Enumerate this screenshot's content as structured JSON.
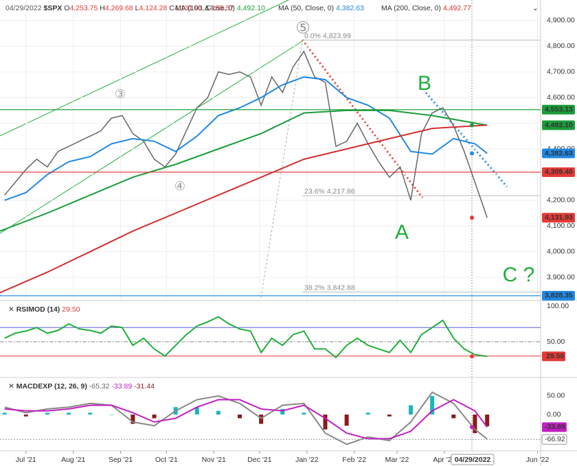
{
  "header": {
    "date": "04/29/2022",
    "symbol": "$SPX",
    "ohlc": [
      {
        "key": "O",
        "value": "4,253.75"
      },
      {
        "key": "H",
        "value": "4,269.68"
      },
      {
        "key": "L",
        "value": "4,124.28"
      },
      {
        "key": "C",
        "value": "4,131.93"
      },
      {
        "key": "Δ",
        "value": "-155.57"
      }
    ],
    "mas": [
      {
        "name": "MA (100, Close, 0)",
        "value": "4,492.10",
        "color": "#1a9c3a"
      },
      {
        "name": "MA (50, Close, 0)",
        "value": "4,382.63",
        "color": "#1e88e5"
      },
      {
        "name": "MA (200, Close, 0)",
        "value": "4,492.77",
        "color": "#d32f2f"
      }
    ]
  },
  "annotations": {
    "wave3": "③",
    "wave4": "④",
    "wave5": "⑤",
    "a": "A",
    "b": "B",
    "c": "C ?"
  },
  "chart_data": [
    {
      "type": "line",
      "xlim": [
        -17,
        337
      ],
      "ylim": [
        3812,
        4980
      ],
      "grid": true,
      "yticks": [
        {
          "value": 3900,
          "label": "3,900.00"
        },
        {
          "value": 4000,
          "label": "4,000.00"
        },
        {
          "value": 4100,
          "label": "4,100.00"
        },
        {
          "value": 4200,
          "label": "4,200.00"
        },
        {
          "value": 4300,
          "label": "4,300.00"
        },
        {
          "value": 4400,
          "label": "4,400.00"
        },
        {
          "value": 4500,
          "label": "4,500.00"
        },
        {
          "value": 4600,
          "label": "4,600.00"
        },
        {
          "value": 4700,
          "label": "4,700.00"
        },
        {
          "value": 4800,
          "label": "4,800.00"
        },
        {
          "value": 4900,
          "label": "4,900.00"
        }
      ],
      "series": [
        {
          "color": "#666666",
          "x": [
            -14,
            -7,
            0,
            7,
            14,
            21,
            28,
            35,
            42,
            49,
            56,
            63,
            70,
            77,
            84,
            91,
            98,
            105,
            112,
            119,
            126,
            133,
            140,
            147,
            154,
            161,
            168,
            175,
            182,
            189,
            196,
            203,
            210,
            217,
            224,
            231,
            238,
            245,
            252,
            259,
            266,
            273,
            280,
            287,
            294,
            302
          ],
          "values": [
            4220,
            4270,
            4320,
            4360,
            4330,
            4390,
            4410,
            4430,
            4450,
            4470,
            4520,
            4530,
            4460,
            4430,
            4360,
            4330,
            4380,
            4470,
            4560,
            4600,
            4700,
            4690,
            4700,
            4680,
            4570,
            4680,
            4620,
            4720,
            4780,
            4680,
            4660,
            4410,
            4430,
            4500,
            4420,
            4350,
            4290,
            4330,
            4200,
            4460,
            4540,
            4560,
            4490,
            4390,
            4270,
            4131.93
          ]
        },
        {
          "color": "#1e88e5",
          "x": [
            -14,
            0,
            14,
            28,
            42,
            56,
            70,
            84,
            98,
            112,
            126,
            140,
            154,
            168,
            182,
            196,
            210,
            224,
            238,
            252,
            266,
            280,
            294,
            302
          ],
          "values": [
            4200,
            4230,
            4300,
            4350,
            4370,
            4420,
            4440,
            4430,
            4390,
            4450,
            4530,
            4560,
            4600,
            4650,
            4680,
            4670,
            4600,
            4570,
            4520,
            4390,
            4380,
            4440,
            4420,
            4382.63
          ]
        },
        {
          "color": "#1a9c3a",
          "x": [
            -17,
            14,
            42,
            70,
            98,
            126,
            154,
            182,
            210,
            238,
            266,
            302
          ],
          "values": [
            4080,
            4150,
            4220,
            4290,
            4340,
            4400,
            4460,
            4540,
            4550,
            4550,
            4530,
            4492.1
          ]
        },
        {
          "color": "#d32f2f",
          "x": [
            -17,
            14,
            42,
            70,
            98,
            126,
            154,
            182,
            210,
            238,
            266,
            302
          ],
          "values": [
            3840,
            3920,
            4000,
            4080,
            4150,
            4220,
            4290,
            4360,
            4400,
            4440,
            4480,
            4492.77
          ]
        }
      ],
      "levels": [
        {
          "value": 4553.13,
          "label": "4,553.13",
          "color": "#1a9c3a",
          "line": true
        },
        {
          "value": 4492.1,
          "label": "4,492.10",
          "color": "#1a9c3a",
          "line": false
        },
        {
          "value": 4382.63,
          "label": "4,382.63",
          "color": "#1e88e5",
          "line": false
        },
        {
          "value": 4309.4,
          "label": "4,309.40",
          "color": "#e53935",
          "line": true
        },
        {
          "value": 4131.93,
          "label": "4,131.93",
          "color": "#e53935",
          "line": false
        },
        {
          "value": 3828.35,
          "label": "3,828.35",
          "color": "#1e88e5",
          "line": true
        }
      ],
      "fib": [
        {
          "level": "0.0%",
          "value": 4823.99,
          "label": "4,823.99"
        },
        {
          "level": "23.6%",
          "value": 4217.86,
          "label": "4,217.86"
        },
        {
          "level": "38.2%",
          "value": 3842.88,
          "label": "3,842.88"
        }
      ]
    },
    {
      "type": "line",
      "title": "RSIMOD (14)",
      "xlim": [
        -17,
        337
      ],
      "ylim": [
        1.9,
        105.8
      ],
      "yticks": [
        {
          "value": 50,
          "label": "50.00"
        },
        {
          "value": 100,
          "label": "100.00"
        }
      ],
      "bands": [
        {
          "value": 70,
          "color": "#5c5ce0"
        },
        {
          "value": 30,
          "color": "#e53935"
        },
        {
          "value": 50,
          "color": "#888888"
        }
      ],
      "last": {
        "value": 29.5,
        "label": "29.50"
      },
      "series": [
        {
          "color": "#1fae3a",
          "x": [
            -14,
            -7,
            0,
            7,
            14,
            21,
            28,
            35,
            42,
            49,
            56,
            63,
            70,
            77,
            84,
            91,
            98,
            105,
            112,
            119,
            126,
            133,
            140,
            147,
            154,
            161,
            168,
            175,
            182,
            189,
            196,
            203,
            210,
            217,
            224,
            231,
            238,
            245,
            252,
            259,
            266,
            273,
            280,
            287,
            294,
            302
          ],
          "values": [
            55,
            62,
            65,
            70,
            62,
            66,
            75,
            68,
            66,
            62,
            72,
            70,
            45,
            55,
            40,
            30,
            45,
            60,
            72,
            78,
            85,
            75,
            68,
            65,
            35,
            55,
            45,
            60,
            65,
            40,
            40,
            28,
            45,
            55,
            45,
            40,
            35,
            52,
            35,
            60,
            70,
            80,
            55,
            40,
            32,
            29.5
          ]
        }
      ]
    },
    {
      "type": "line",
      "title": "MACDEXP (12, 26, 9)",
      "xlim": [
        -17,
        337
      ],
      "ylim": [
        -94,
        96
      ],
      "yticks": [
        {
          "value": 50,
          "label": "50.00"
        },
        {
          "value": 0,
          "label": "0.00"
        }
      ],
      "xticks": [
        {
          "value": 0,
          "label": "Jul '21"
        },
        {
          "value": 31,
          "label": "Aug '21"
        },
        {
          "value": 62,
          "label": "Sep '21"
        },
        {
          "value": 92,
          "label": "Oct '21"
        },
        {
          "value": 123,
          "label": "Nov '21"
        },
        {
          "value": 153,
          "label": "Dec '21"
        },
        {
          "value": 184,
          "label": "Jan '22"
        },
        {
          "value": 215,
          "label": "Feb '22"
        },
        {
          "value": 243,
          "label": "Mar '22"
        },
        {
          "value": 274,
          "label": "Apr '22"
        },
        {
          "value": 335,
          "label": "Jun '22"
        }
      ],
      "price_line": {
        "value": -66.92,
        "label": "-66.92"
      },
      "series": [
        {
          "type": "bar",
          "color": "#1bb5c0",
          "neg_color": "#8b1a1a",
          "last_label": "-31.44",
          "x": [
            -14,
            0,
            14,
            28,
            42,
            56,
            70,
            84,
            98,
            112,
            126,
            140,
            154,
            168,
            182,
            196,
            210,
            224,
            238,
            252,
            266,
            280,
            294,
            302
          ],
          "values": [
            5,
            -5,
            5,
            5,
            5,
            0,
            -25,
            -10,
            20,
            20,
            10,
            -10,
            -25,
            15,
            5,
            -40,
            -30,
            5,
            -5,
            25,
            50,
            -10,
            -50,
            -31.44
          ]
        },
        {
          "color": "#888888",
          "last_label": "-65.32",
          "x": [
            -14,
            0,
            14,
            28,
            42,
            56,
            70,
            84,
            98,
            112,
            126,
            140,
            154,
            168,
            182,
            196,
            210,
            224,
            238,
            252,
            266,
            280,
            294,
            302
          ],
          "values": [
            20,
            5,
            15,
            20,
            30,
            25,
            -20,
            -30,
            10,
            40,
            50,
            30,
            -10,
            25,
            30,
            -50,
            -80,
            -60,
            -70,
            -20,
            60,
            30,
            -40,
            -65.32
          ]
        },
        {
          "color": "#c020c0",
          "last_label": "-33.89",
          "x": [
            -14,
            0,
            14,
            28,
            42,
            56,
            70,
            84,
            98,
            112,
            126,
            140,
            154,
            168,
            182,
            196,
            210,
            224,
            238,
            252,
            266,
            280,
            294,
            302
          ],
          "values": [
            15,
            10,
            10,
            15,
            25,
            25,
            5,
            -20,
            -10,
            20,
            40,
            40,
            15,
            10,
            25,
            -10,
            -50,
            -65,
            -65,
            -45,
            10,
            40,
            10,
            -33.89
          ]
        }
      ]
    }
  ]
}
